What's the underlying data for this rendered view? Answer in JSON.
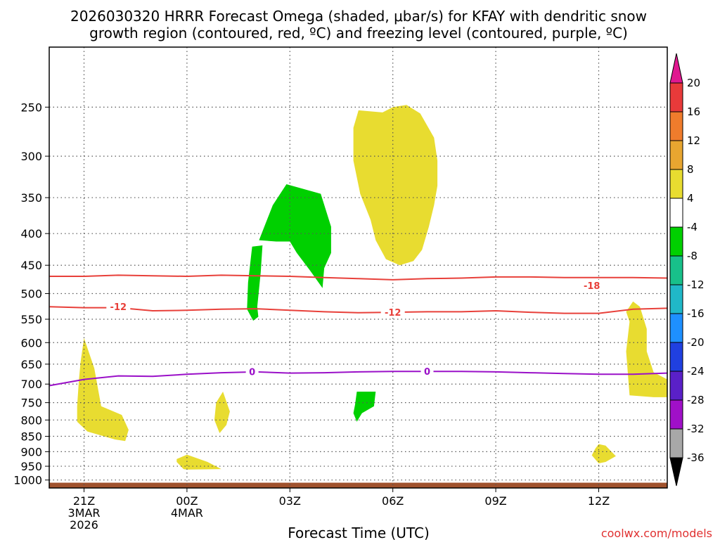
{
  "chart_data": {
    "type": "heatmap",
    "title_line1": "2026030320 HRRR Forecast Omega (shaded, μbar/s) for KFAY with dendritic snow",
    "title_line2": "growth region (contoured, red, ºC) and freezing level (contoured, purple, ºC)",
    "xlabel": "Forecast Time (UTC)",
    "ylabel": "",
    "credit": "coolwx.com/models",
    "x_range_hours": [
      -1,
      17
    ],
    "y_range_mb": [
      1030,
      200
    ],
    "x_ticks": [
      {
        "hour": 0,
        "lines": [
          "21Z",
          "3MAR",
          "2026"
        ]
      },
      {
        "hour": 3,
        "lines": [
          "00Z",
          "4MAR"
        ]
      },
      {
        "hour": 6,
        "lines": [
          "03Z"
        ]
      },
      {
        "hour": 9,
        "lines": [
          "06Z"
        ]
      },
      {
        "hour": 12,
        "lines": [
          "09Z"
        ]
      },
      {
        "hour": 15,
        "lines": [
          "12Z"
        ]
      }
    ],
    "y_ticks": [
      250,
      300,
      350,
      400,
      450,
      500,
      550,
      600,
      650,
      700,
      750,
      800,
      850,
      900,
      950,
      1000
    ],
    "contours": [
      {
        "name": "dgz-minus18",
        "color": "#e8403a",
        "label": "-18",
        "label_at": [
          14.8,
          485
        ],
        "points": [
          [
            -1,
            469
          ],
          [
            0,
            469
          ],
          [
            1,
            467
          ],
          [
            2,
            468
          ],
          [
            3,
            469
          ],
          [
            4,
            467
          ],
          [
            5,
            468
          ],
          [
            6,
            469
          ],
          [
            7,
            471
          ],
          [
            8,
            473
          ],
          [
            9,
            475
          ],
          [
            10,
            473
          ],
          [
            11,
            472
          ],
          [
            12,
            470
          ],
          [
            13,
            470
          ],
          [
            14,
            471
          ],
          [
            15,
            471
          ],
          [
            16,
            471
          ],
          [
            17,
            472
          ]
        ]
      },
      {
        "name": "dgz-minus12",
        "color": "#e8403a",
        "label": "-12",
        "label_at": [
          1.0,
          525
        ],
        "label2": "-12",
        "label2_at": [
          9.0,
          536
        ],
        "points": [
          [
            -1,
            525
          ],
          [
            0,
            527
          ],
          [
            1,
            527
          ],
          [
            2,
            533
          ],
          [
            3,
            532
          ],
          [
            4,
            530
          ],
          [
            5,
            529
          ],
          [
            6,
            532
          ],
          [
            7,
            535
          ],
          [
            8,
            537
          ],
          [
            9,
            536
          ],
          [
            10,
            535
          ],
          [
            11,
            535
          ],
          [
            12,
            533
          ],
          [
            13,
            536
          ],
          [
            14,
            538
          ],
          [
            15,
            538
          ],
          [
            16,
            530
          ],
          [
            17,
            528
          ]
        ]
      },
      {
        "name": "freezing-level-0",
        "color": "#9a10c8",
        "label": "0",
        "label_at": [
          4.9,
          668
        ],
        "label2": "0",
        "label2_at": [
          10.0,
          667
        ],
        "points": [
          [
            -1,
            704
          ],
          [
            0,
            688
          ],
          [
            1,
            679
          ],
          [
            2,
            680
          ],
          [
            3,
            675
          ],
          [
            4,
            671
          ],
          [
            5,
            669
          ],
          [
            6,
            672
          ],
          [
            7,
            671
          ],
          [
            8,
            669
          ],
          [
            9,
            668
          ],
          [
            10,
            668
          ],
          [
            11,
            668
          ],
          [
            12,
            669
          ],
          [
            13,
            671
          ],
          [
            14,
            673
          ],
          [
            15,
            675
          ],
          [
            16,
            675
          ],
          [
            17,
            672
          ]
        ]
      }
    ],
    "shaded_regions": [
      {
        "name": "yellow-upper",
        "category": "4 to 8",
        "color": "#e8dc30",
        "points": [
          [
            8.7,
            255
          ],
          [
            9.0,
            250
          ],
          [
            9.4,
            248
          ],
          [
            9.8,
            256
          ],
          [
            10.2,
            280
          ],
          [
            10.3,
            305
          ],
          [
            10.3,
            335
          ],
          [
            10.2,
            360
          ],
          [
            10.05,
            390
          ],
          [
            9.85,
            425
          ],
          [
            9.6,
            443
          ],
          [
            9.2,
            450
          ],
          [
            8.8,
            440
          ],
          [
            8.5,
            410
          ],
          [
            8.35,
            380
          ],
          [
            8.05,
            345
          ],
          [
            7.85,
            305
          ],
          [
            7.85,
            270
          ],
          [
            8.0,
            253
          ]
        ]
      },
      {
        "name": "green-mid",
        "category": "-8 to -4",
        "color": "#00d000",
        "points": [
          [
            5.1,
            410
          ],
          [
            5.5,
            360
          ],
          [
            5.9,
            333
          ],
          [
            6.9,
            345
          ],
          [
            7.2,
            390
          ],
          [
            7.2,
            430
          ],
          [
            7.0,
            455
          ],
          [
            6.95,
            490
          ],
          [
            6.6,
            460
          ],
          [
            6.2,
            430
          ],
          [
            6.0,
            412
          ],
          [
            5.6,
            412
          ]
        ]
      },
      {
        "name": "green-left",
        "category": "-8 to -4",
        "color": "#00d000",
        "points": [
          [
            4.9,
            420
          ],
          [
            5.2,
            418
          ],
          [
            5.15,
            462
          ],
          [
            5.05,
            525
          ],
          [
            5.08,
            545
          ],
          [
            4.93,
            553
          ],
          [
            4.75,
            530
          ],
          [
            4.78,
            480
          ]
        ]
      },
      {
        "name": "yellow-left",
        "category": "4 to 8",
        "color": "#e8dc30",
        "points": [
          [
            0.0,
            590
          ],
          [
            0.3,
            660
          ],
          [
            0.5,
            760
          ],
          [
            1.1,
            785
          ],
          [
            1.3,
            830
          ],
          [
            1.2,
            865
          ],
          [
            0.9,
            860
          ],
          [
            0.1,
            835
          ],
          [
            -0.2,
            805
          ],
          [
            -0.2,
            760
          ],
          [
            -0.15,
            690
          ],
          [
            -0.1,
            645
          ]
        ]
      },
      {
        "name": "yellow-small",
        "category": "4 to 8",
        "color": "#e8dc30",
        "points": [
          [
            4.05,
            720
          ],
          [
            4.25,
            775
          ],
          [
            4.15,
            815
          ],
          [
            3.95,
            840
          ],
          [
            3.8,
            800
          ],
          [
            3.85,
            750
          ]
        ]
      },
      {
        "name": "yellow-bottom",
        "category": "4 to 8",
        "color": "#e8dc30",
        "points": [
          [
            2.7,
            925
          ],
          [
            3.0,
            910
          ],
          [
            3.6,
            935
          ],
          [
            4.0,
            960
          ],
          [
            3.0,
            962
          ],
          [
            2.9,
            960
          ],
          [
            2.7,
            935
          ]
        ]
      },
      {
        "name": "green-small",
        "category": "-8 to -4",
        "color": "#00d000",
        "points": [
          [
            7.95,
            720
          ],
          [
            8.5,
            720
          ],
          [
            8.45,
            760
          ],
          [
            8.1,
            780
          ],
          [
            7.95,
            805
          ],
          [
            7.85,
            780
          ],
          [
            7.9,
            755
          ]
        ]
      },
      {
        "name": "yellow-right",
        "category": "4 to 8",
        "color": "#e8dc30",
        "points": [
          [
            16.0,
            515
          ],
          [
            16.2,
            525
          ],
          [
            16.4,
            570
          ],
          [
            16.4,
            620
          ],
          [
            16.6,
            670
          ],
          [
            17,
            688
          ],
          [
            17,
            735
          ],
          [
            16.6,
            735
          ],
          [
            15.9,
            730
          ],
          [
            15.8,
            620
          ],
          [
            15.9,
            555
          ],
          [
            15.8,
            535
          ]
        ]
      },
      {
        "name": "yellow-right-bottom",
        "category": "4 to 8",
        "color": "#e8dc30",
        "points": [
          [
            15.0,
            875
          ],
          [
            15.2,
            880
          ],
          [
            15.5,
            915
          ],
          [
            15.2,
            935
          ],
          [
            15.0,
            940
          ],
          [
            14.8,
            912
          ],
          [
            14.9,
            890
          ]
        ]
      }
    ],
    "terrain": {
      "color": "#a0522d",
      "top_mb": 1010
    },
    "colorbar": {
      "top_label": "20",
      "bottom_label": "-36",
      "categories": [
        {
          "range": "16 to 20",
          "color": "#e83a3a",
          "label": "20"
        },
        {
          "range": "12 to 16",
          "color": "#ef7c2c",
          "label": "16"
        },
        {
          "range": "8 to 12",
          "color": "#e8a630",
          "label": "12"
        },
        {
          "range": "4 to 8",
          "color": "#e8dc30",
          "label": "8"
        },
        {
          "range": "-4 to 4",
          "color": "#ffffff",
          "label": "4"
        },
        {
          "range": "-8 to -4",
          "color": "#00d000",
          "label": "-4"
        },
        {
          "range": "-12 to -8",
          "color": "#18c08a",
          "label": "-8"
        },
        {
          "range": "-16 to -12",
          "color": "#20b8c8",
          "label": "-12"
        },
        {
          "range": "-20 to -16",
          "color": "#1e90ff",
          "label": "-16"
        },
        {
          "range": "-24 to -20",
          "color": "#2040e0",
          "label": "-20"
        },
        {
          "range": "-28 to -24",
          "color": "#5a20c8",
          "label": "-24"
        },
        {
          "range": "-32 to -28",
          "color": "#a010c8",
          "label": "-28"
        },
        {
          "range": "-36 to -32",
          "color": "#a8a8a8",
          "label": "-32"
        }
      ],
      "last_label": "-36",
      "top_arrow_color": "#e01890",
      "bottom_arrow_color": "#000000"
    }
  }
}
